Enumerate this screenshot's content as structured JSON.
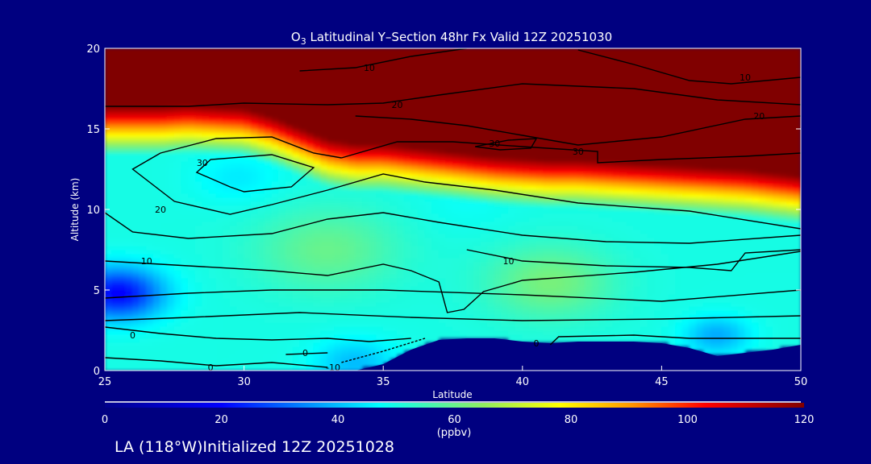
{
  "chart_data": {
    "type": "heatmap",
    "title": "O3 Latitudinal Y-Section 48hr  Fx Valid 12Z 20251030",
    "title_main": "O",
    "title_sub": "3",
    "title_rest": " Latitudinal Y–Section 48hr  Fx Valid 12Z 20251030",
    "xlabel": "Latitude",
    "ylabel": "Altitude (km)",
    "xlim": [
      25,
      50
    ],
    "ylim": [
      0,
      20
    ],
    "xticks": [
      "25",
      "30",
      "35",
      "40",
      "45",
      "50"
    ],
    "yticks": [
      "0",
      "5",
      "10",
      "15",
      "20"
    ],
    "colorbar": {
      "label": "(ppbv)",
      "range": [
        0,
        120
      ],
      "ticks": [
        "0",
        "20",
        "40",
        "60",
        "80",
        "100",
        "120"
      ],
      "stops": [
        [
          0,
          "#00008c"
        ],
        [
          20,
          "#0000ff"
        ],
        [
          47,
          "#00ffff"
        ],
        [
          65,
          "#90ee60"
        ],
        [
          78,
          "#ffff00"
        ],
        [
          90,
          "#ff9900"
        ],
        [
          103,
          "#ff0000"
        ],
        [
          120,
          "#800000"
        ]
      ]
    },
    "latitudes": [
      25,
      26,
      27,
      28,
      29,
      30,
      31,
      32,
      33,
      34,
      35,
      36,
      37,
      38,
      39,
      40,
      41,
      42,
      43,
      44,
      45,
      46,
      47,
      48,
      49,
      50
    ],
    "tropopause_km": [
      15.6,
      15.6,
      15.6,
      15.7,
      15.6,
      15.5,
      15,
      14.3,
      13.6,
      13.3,
      13.3,
      13.1,
      12.9,
      12.7,
      12.5,
      12.4,
      12.3,
      12.3,
      12.2,
      12.1,
      12.0,
      11.9,
      11.8,
      11.7,
      11.5,
      11.3
    ],
    "terrain_km": [
      0,
      0,
      0,
      0,
      0,
      0,
      0,
      0,
      0,
      0,
      0.4,
      1.3,
      1.9,
      2.0,
      2.0,
      1.8,
      1.7,
      1.8,
      1.8,
      1.8,
      1.7,
      1.4,
      0.9,
      1.1,
      1.3,
      1.6
    ],
    "troposphere_ppbv": 50,
    "anomalies": [
      {
        "lat": 25.5,
        "alt": 4.8,
        "value": 20,
        "radius": 1.6
      },
      {
        "lat": 29.8,
        "alt": 12.0,
        "value": 45,
        "radius": 1.6
      },
      {
        "lat": 33,
        "alt": 7.5,
        "value": 60,
        "radius": 2.5
      },
      {
        "lat": 41,
        "alt": 5.5,
        "value": 62,
        "radius": 2.2
      },
      {
        "lat": 38,
        "alt": 10.5,
        "value": 48,
        "radius": 1.8
      },
      {
        "lat": 34,
        "alt": 0.5,
        "value": 40,
        "radius": 1.5
      },
      {
        "lat": 47,
        "alt": 2.2,
        "value": 38,
        "radius": 1.2
      }
    ],
    "contours": [
      {
        "label": "10",
        "label_at": [
          34.5,
          18.8
        ],
        "points": [
          [
            32,
            18.6
          ],
          [
            34,
            18.8
          ],
          [
            36,
            19.5
          ],
          [
            38,
            20
          ]
        ]
      },
      {
        "label": "10",
        "label_at": [
          48,
          18.2
        ],
        "points": [
          [
            42,
            19.9
          ],
          [
            44,
            19
          ],
          [
            46,
            18
          ],
          [
            47.5,
            17.8
          ],
          [
            50,
            18.2
          ]
        ]
      },
      {
        "label": "20",
        "label_at": [
          35.5,
          16.5
        ],
        "points": [
          [
            25,
            16.4
          ],
          [
            28,
            16.4
          ],
          [
            30,
            16.6
          ],
          [
            33,
            16.5
          ],
          [
            35,
            16.6
          ],
          [
            37,
            17.1
          ],
          [
            40,
            17.8
          ],
          [
            44,
            17.5
          ],
          [
            47,
            16.8
          ],
          [
            50,
            16.5
          ]
        ]
      },
      {
        "label": "20",
        "label_at": [
          48.5,
          15.8
        ],
        "points": [
          [
            34,
            15.8
          ],
          [
            36,
            15.6
          ],
          [
            38,
            15.2
          ],
          [
            40,
            14.6
          ],
          [
            42,
            14.0
          ],
          [
            45,
            14.5
          ],
          [
            48,
            15.6
          ],
          [
            50,
            15.8
          ]
        ]
      },
      {
        "label": "30",
        "label_at": [
          42,
          13.6
        ],
        "points": [
          [
            33.5,
            13.2
          ],
          [
            35.5,
            14.2
          ],
          [
            37.5,
            14.2
          ],
          [
            40,
            13.9
          ],
          [
            42.7,
            13.6
          ],
          [
            42.7,
            12.9
          ],
          [
            45,
            13.1
          ],
          [
            48,
            13.3
          ],
          [
            50,
            13.5
          ]
        ]
      },
      {
        "label": "30",
        "label_at": [
          39,
          14.1
        ],
        "points": [
          [
            38.3,
            13.9
          ],
          [
            39.5,
            14.3
          ],
          [
            40.5,
            14.4
          ],
          [
            40.3,
            13.8
          ],
          [
            39.2,
            13.7
          ],
          [
            38.3,
            13.9
          ]
        ]
      },
      {
        "label": "30",
        "label_at": [
          28.5,
          12.9
        ],
        "points": [
          [
            29.5,
            11.4
          ],
          [
            28.3,
            12.3
          ],
          [
            28.8,
            13.1
          ],
          [
            31,
            13.4
          ],
          [
            32.5,
            12.6
          ],
          [
            31.7,
            11.4
          ],
          [
            30,
            11.1
          ],
          [
            29.5,
            11.4
          ]
        ]
      },
      {
        "label": "20",
        "label_at": [
          27,
          10.0
        ],
        "points": [
          [
            27,
            13.5
          ],
          [
            26,
            12.5
          ],
          [
            27.5,
            10.5
          ],
          [
            29.5,
            9.7
          ],
          [
            31,
            10.3
          ],
          [
            33,
            11.2
          ],
          [
            35,
            12.2
          ],
          [
            36.5,
            11.7
          ],
          [
            39,
            11.2
          ],
          [
            42,
            10.4
          ],
          [
            46,
            9.9
          ],
          [
            50,
            8.8
          ]
        ]
      },
      {
        "label": "",
        "label_at": null,
        "points": [
          [
            27,
            13.5
          ],
          [
            29,
            14.4
          ],
          [
            31,
            14.5
          ],
          [
            32.5,
            13.5
          ],
          [
            33.5,
            13.2
          ]
        ]
      },
      {
        "label": "",
        "label_at": null,
        "points": [
          [
            25,
            9.8
          ],
          [
            26,
            8.6
          ],
          [
            28,
            8.2
          ],
          [
            31,
            8.5
          ],
          [
            33,
            9.4
          ],
          [
            35,
            9.8
          ],
          [
            37,
            9.2
          ],
          [
            40,
            8.4
          ],
          [
            43,
            8.0
          ],
          [
            46,
            7.9
          ],
          [
            50,
            8.4
          ]
        ]
      },
      {
        "label": "10",
        "label_at": [
          26.5,
          6.8
        ],
        "points": [
          [
            25,
            6.8
          ],
          [
            28,
            6.5
          ],
          [
            31,
            6.2
          ],
          [
            33,
            5.9
          ],
          [
            35,
            6.6
          ],
          [
            36,
            6.2
          ],
          [
            37,
            5.5
          ],
          [
            37.3,
            3.6
          ],
          [
            37.9,
            3.8
          ],
          [
            38.6,
            4.9
          ],
          [
            40,
            5.6
          ],
          [
            44,
            6.1
          ],
          [
            47,
            6.6
          ],
          [
            50,
            7.4
          ]
        ]
      },
      {
        "label": "10",
        "label_at": [
          39.5,
          6.8
        ],
        "points": [
          [
            38,
            7.5
          ],
          [
            40,
            6.8
          ],
          [
            43,
            6.5
          ],
          [
            46,
            6.4
          ],
          [
            47.5,
            6.2
          ],
          [
            48,
            7.3
          ],
          [
            50,
            7.5
          ]
        ]
      },
      {
        "label": "",
        "label_at": null,
        "points": [
          [
            25,
            4.5
          ],
          [
            28,
            4.8
          ],
          [
            31,
            5.0
          ],
          [
            35,
            5.0
          ],
          [
            40,
            4.7
          ],
          [
            45,
            4.3
          ],
          [
            50,
            5.0
          ]
        ]
      },
      {
        "label": "",
        "label_at": null,
        "points": [
          [
            25,
            3.1
          ],
          [
            28,
            3.3
          ],
          [
            32,
            3.6
          ],
          [
            36,
            3.3
          ],
          [
            40,
            3.1
          ],
          [
            45,
            3.2
          ],
          [
            50,
            3.4
          ]
        ]
      },
      {
        "label": "0",
        "label_at": [
          26,
          2.2
        ],
        "points": [
          [
            25,
            2.7
          ],
          [
            27,
            2.3
          ],
          [
            29,
            2.0
          ],
          [
            31,
            1.9
          ],
          [
            33,
            2.0
          ],
          [
            34.5,
            1.8
          ],
          [
            36,
            2.0
          ]
        ]
      },
      {
        "label": "0",
        "label_at": [
          32.2,
          1.1
        ],
        "points": [
          [
            31.5,
            1.0
          ],
          [
            33,
            1.1
          ]
        ]
      },
      {
        "label": "0",
        "label_at": [
          40.5,
          1.7
        ],
        "points": [
          [
            41,
            1.6
          ],
          [
            41.3,
            2.1
          ],
          [
            44,
            2.2
          ],
          [
            46,
            2.0
          ],
          [
            50,
            2.0
          ]
        ]
      },
      {
        "label": "0",
        "label_at": [
          28.8,
          0.2
        ],
        "points": [
          [
            25,
            0.8
          ],
          [
            27,
            0.6
          ],
          [
            29,
            0.3
          ],
          [
            31,
            0.5
          ],
          [
            33,
            0.2
          ]
        ]
      },
      {
        "label": "-10",
        "label_at": [
          33.2,
          0.2
        ],
        "points": [
          [
            33.5,
            0.5
          ],
          [
            35,
            1.2
          ],
          [
            36.5,
            2.0
          ]
        ]
      }
    ]
  },
  "footer": {
    "location": "LA (118°W)Initialized 12Z 20251028"
  }
}
